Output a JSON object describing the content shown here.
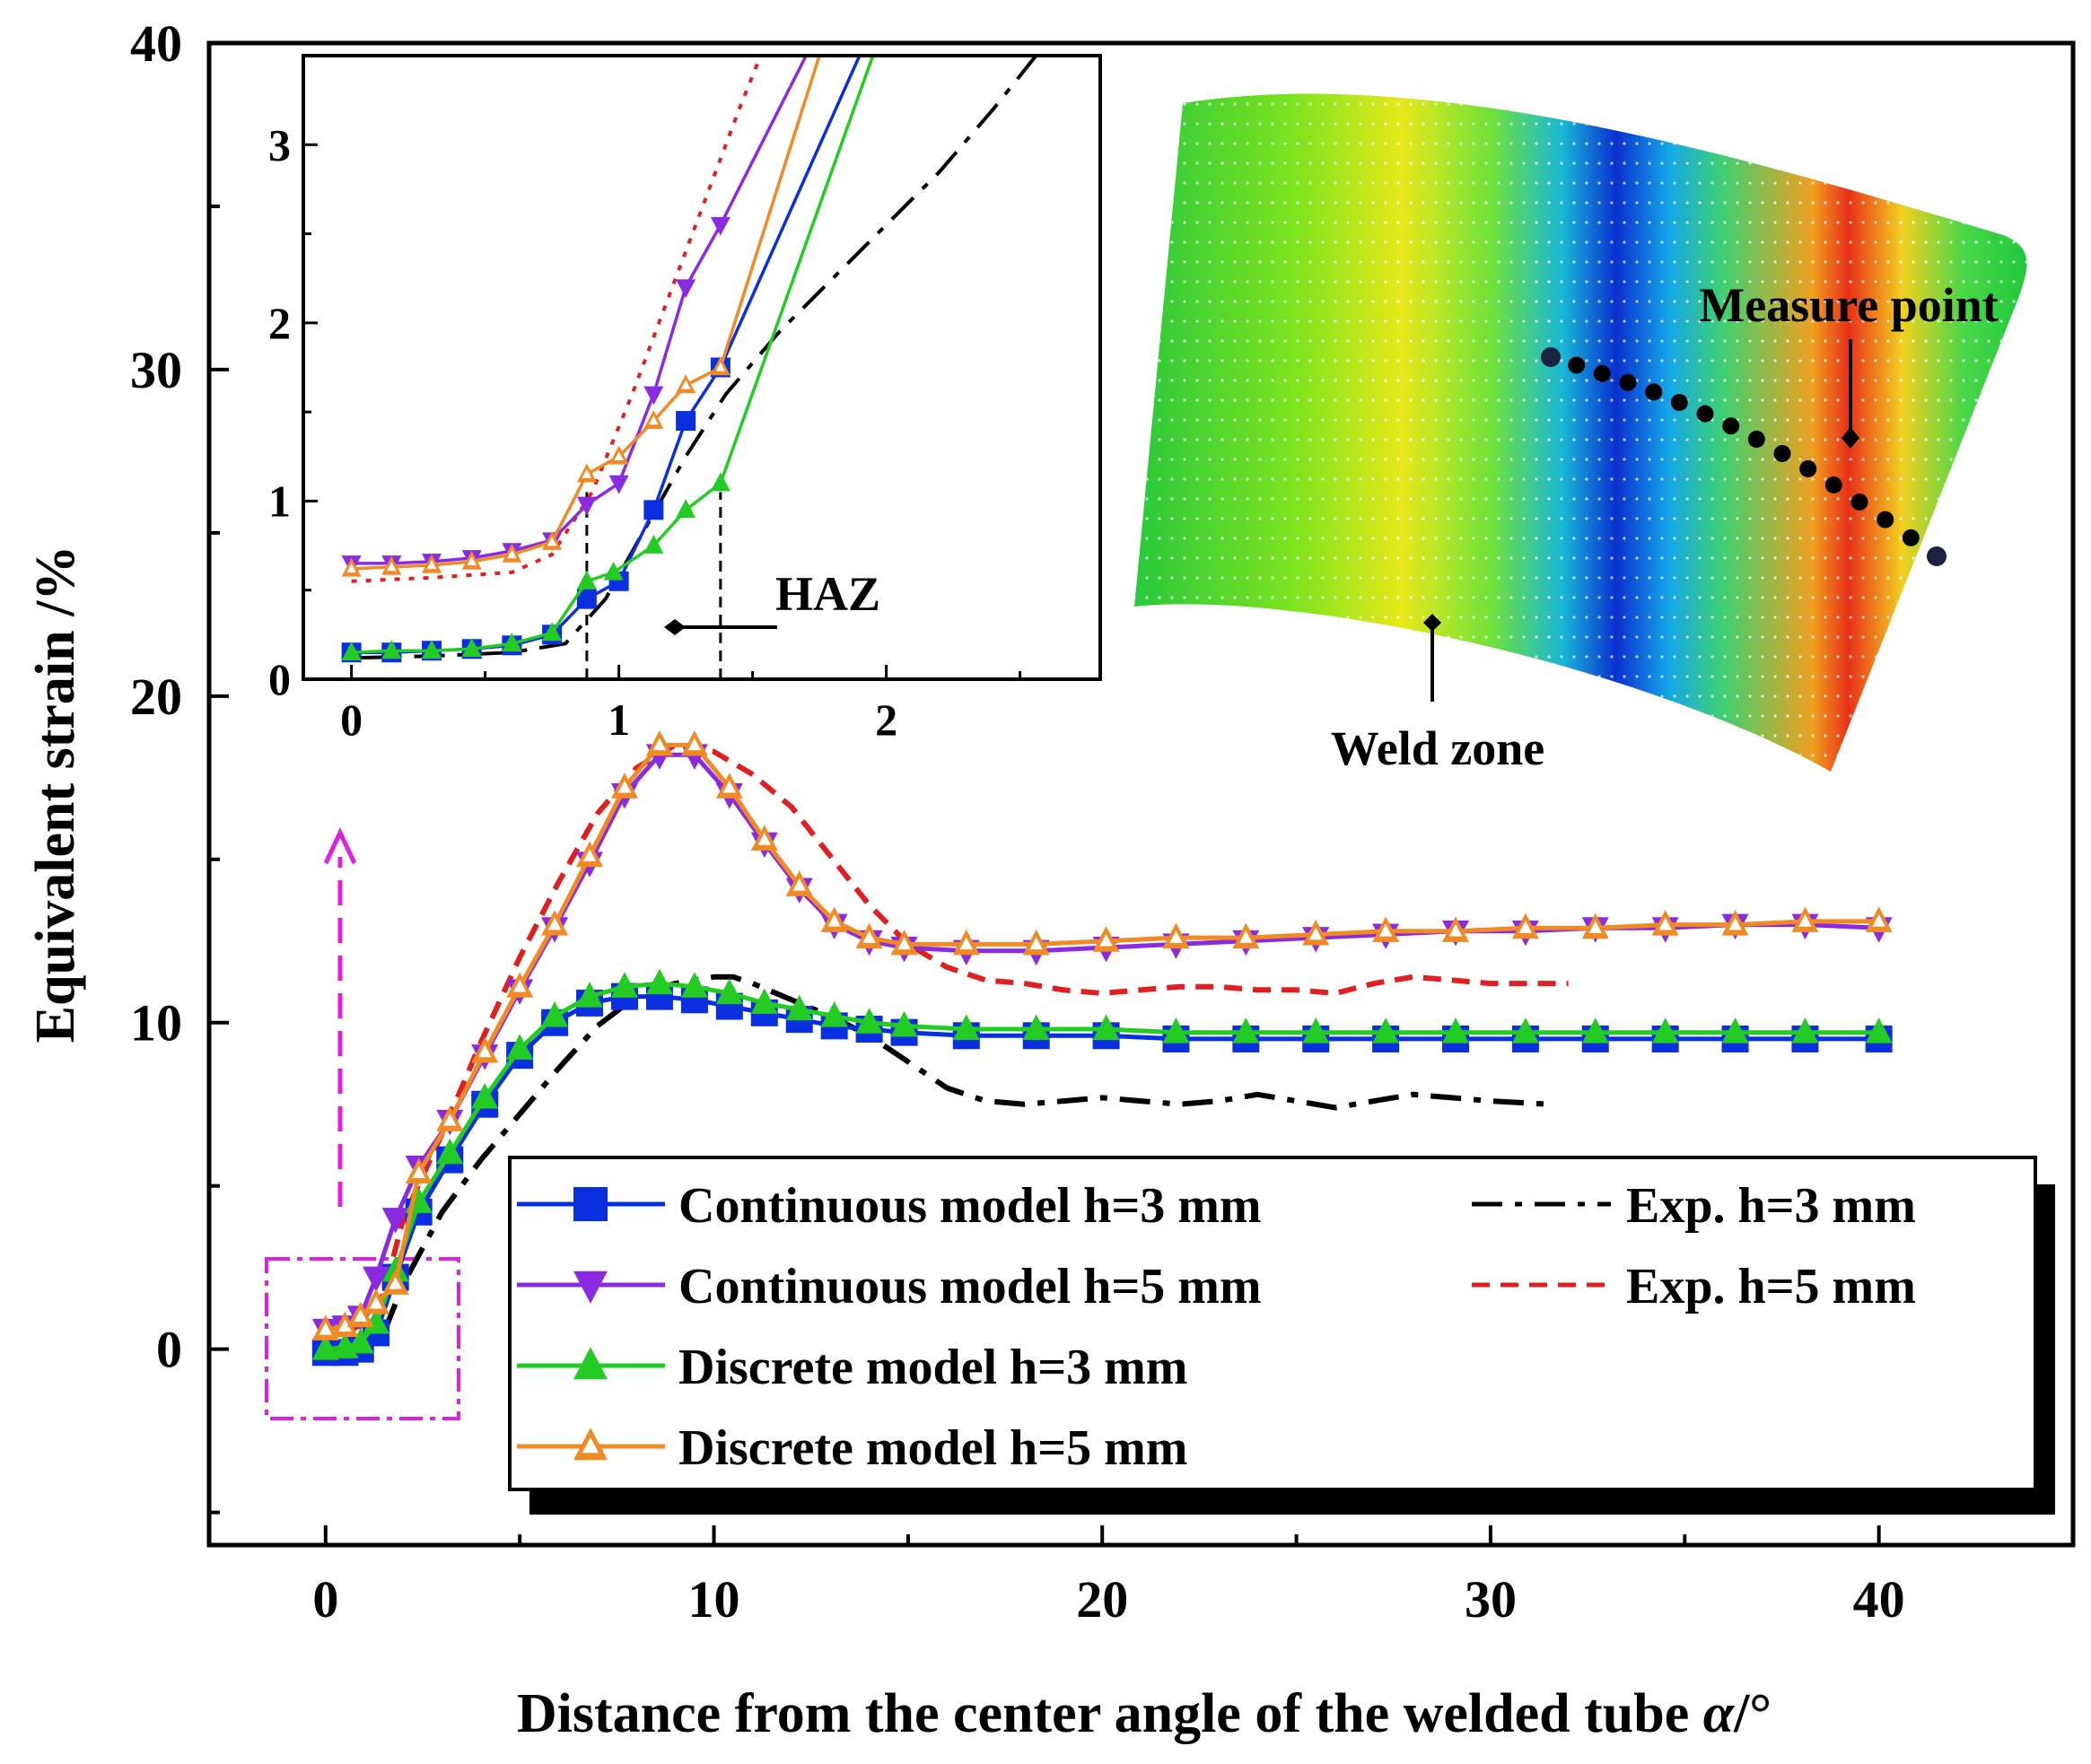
{
  "chart_data": {
    "type": "line",
    "xlabel": "Distance from the center angle of the welded tube α/°",
    "ylabel": "Equivalent strain /%",
    "xlim": [
      -3,
      45
    ],
    "ylim": [
      -6,
      40
    ],
    "xticks": [
      "0",
      "10",
      "20",
      "30",
      "40"
    ],
    "yticks": [
      "0",
      "10",
      "20",
      "30",
      "40"
    ],
    "legend_position": "bottom-right",
    "colors": {
      "cont3": "#0a2fe0",
      "cont5": "#8a2be2",
      "disc3": "#22cc22",
      "disc5": "#f08a24",
      "exp3": "#000000",
      "exp5": "#e02020",
      "guide": "#e020e0"
    },
    "series": [
      {
        "name": "Continuous model h=3 mm",
        "marker": "square",
        "x": [
          0,
          0.5,
          0.9,
          1.3,
          1.8,
          2.4,
          3.2,
          4.1,
          5.0,
          5.9,
          6.8,
          7.7,
          8.6,
          9.5,
          10.4,
          11.3,
          12.2,
          13.1,
          14.0,
          14.9,
          16.5,
          18.3,
          20.1,
          21.9,
          23.7,
          25.5,
          27.3,
          29.1,
          30.9,
          32.7,
          34.5,
          36.3,
          38.1,
          40.0
        ],
        "y": [
          -0.1,
          -0.1,
          0.0,
          0.5,
          2.2,
          4.2,
          5.8,
          7.5,
          9.0,
          10.0,
          10.6,
          10.8,
          10.8,
          10.7,
          10.5,
          10.3,
          10.1,
          9.9,
          9.8,
          9.7,
          9.6,
          9.6,
          9.6,
          9.5,
          9.5,
          9.5,
          9.5,
          9.5,
          9.5,
          9.5,
          9.5,
          9.5,
          9.5,
          9.5
        ]
      },
      {
        "name": "Continuous model h=5 mm",
        "marker": "triangle-down",
        "x": [
          0,
          0.5,
          0.9,
          1.3,
          1.8,
          2.4,
          3.2,
          4.1,
          5.0,
          5.9,
          6.8,
          7.7,
          8.6,
          9.5,
          10.4,
          11.3,
          12.2,
          13.1,
          14.0,
          14.9,
          16.5,
          18.3,
          20.1,
          21.9,
          23.7,
          25.5,
          27.3,
          29.1,
          30.9,
          32.7,
          34.5,
          36.3,
          38.1,
          40.0
        ],
        "y": [
          0.6,
          0.7,
          1.0,
          2.2,
          4.0,
          5.6,
          7.0,
          9.0,
          11.0,
          12.9,
          14.9,
          17.0,
          18.2,
          18.2,
          17.0,
          15.5,
          14.1,
          13.0,
          12.5,
          12.3,
          12.2,
          12.2,
          12.3,
          12.4,
          12.5,
          12.6,
          12.7,
          12.8,
          12.8,
          12.9,
          12.9,
          13.0,
          13.0,
          12.9
        ]
      },
      {
        "name": "Discrete model h=3 mm",
        "marker": "triangle-up",
        "x": [
          0,
          0.5,
          0.9,
          1.3,
          1.8,
          2.4,
          3.2,
          4.1,
          5.0,
          5.9,
          6.8,
          7.7,
          8.6,
          9.5,
          10.4,
          11.3,
          12.2,
          13.1,
          14.0,
          14.9,
          16.5,
          18.3,
          20.1,
          21.9,
          23.7,
          25.5,
          27.3,
          29.1,
          30.9,
          32.7,
          34.5,
          36.3,
          38.1,
          40.0
        ],
        "y": [
          0.0,
          0.05,
          0.2,
          0.8,
          2.4,
          4.5,
          6.0,
          7.7,
          9.2,
          10.2,
          10.8,
          11.1,
          11.2,
          11.1,
          10.9,
          10.6,
          10.4,
          10.2,
          10.0,
          9.9,
          9.8,
          9.8,
          9.8,
          9.7,
          9.7,
          9.7,
          9.7,
          9.7,
          9.7,
          9.7,
          9.7,
          9.7,
          9.7,
          9.7
        ]
      },
      {
        "name": "Discrete model h=5 mm",
        "marker": "triangle-up-open",
        "x": [
          0,
          0.5,
          0.9,
          1.3,
          1.8,
          2.4,
          3.2,
          4.1,
          5.0,
          5.9,
          6.8,
          7.7,
          8.6,
          9.5,
          10.4,
          11.3,
          12.2,
          13.1,
          14.0,
          14.9,
          16.5,
          18.3,
          20.1,
          21.9,
          23.7,
          25.5,
          27.3,
          29.1,
          30.9,
          32.7,
          34.5,
          36.3,
          38.1,
          40.0
        ],
        "y": [
          0.6,
          0.7,
          1.0,
          1.4,
          2.0,
          5.4,
          7.0,
          9.1,
          11.1,
          13.0,
          15.1,
          17.2,
          18.5,
          18.5,
          17.2,
          15.6,
          14.2,
          13.1,
          12.6,
          12.4,
          12.4,
          12.4,
          12.5,
          12.6,
          12.6,
          12.7,
          12.8,
          12.8,
          12.9,
          12.9,
          13.0,
          13.0,
          13.1,
          13.1
        ]
      },
      {
        "name": "Exp. h=3 mm",
        "style": "dash-dot",
        "x": [
          0,
          0.5,
          1.0,
          1.5,
          2.0,
          3.0,
          4.0,
          5.0,
          6.0,
          7.0,
          8.0,
          9.0,
          10.0,
          10.5,
          11.0,
          12.0,
          13.0,
          14.0,
          15.0,
          16.0,
          17.0,
          18.0,
          19.0,
          20.0,
          21.0,
          22.0,
          23.0,
          24.0,
          25.0,
          26.0,
          27.0,
          28.0,
          29.0,
          30.0,
          31.5
        ],
        "y": [
          0.0,
          0.05,
          0.1,
          0.5,
          2.0,
          4.2,
          5.8,
          7.2,
          8.6,
          9.9,
          10.8,
          11.2,
          11.4,
          11.4,
          11.2,
          10.7,
          10.2,
          9.6,
          8.8,
          8.0,
          7.6,
          7.5,
          7.6,
          7.7,
          7.6,
          7.5,
          7.6,
          7.8,
          7.6,
          7.4,
          7.6,
          7.8,
          7.7,
          7.6,
          7.5
        ]
      },
      {
        "name": "Exp. h=5 mm",
        "style": "dashed",
        "x": [
          0,
          0.5,
          1.0,
          1.5,
          2.0,
          3.0,
          4.0,
          5.0,
          6.0,
          7.0,
          8.0,
          9.0,
          10.0,
          11.0,
          12.0,
          13.0,
          14.0,
          15.0,
          16.0,
          17.0,
          18.0,
          19.0,
          20.0,
          21.0,
          22.0,
          23.0,
          24.0,
          25.0,
          26.0,
          27.0,
          28.0,
          29.0,
          30.0,
          31.0,
          32.0
        ],
        "y": [
          0.4,
          0.5,
          0.8,
          1.7,
          4.0,
          6.6,
          9.4,
          12.0,
          14.3,
          16.4,
          17.8,
          18.5,
          18.3,
          17.6,
          16.6,
          15.1,
          13.6,
          12.4,
          11.7,
          11.3,
          11.2,
          11.0,
          10.9,
          11.0,
          11.1,
          11.1,
          11.0,
          11.0,
          10.9,
          11.2,
          11.4,
          11.3,
          11.2,
          11.2,
          11.2
        ]
      }
    ],
    "inset": {
      "xlim": [
        -0.18,
        2.8
      ],
      "ylim": [
        0,
        3.5
      ],
      "xticks": [
        "0",
        "1",
        "2"
      ],
      "yticks": [
        "0",
        "1",
        "2",
        "3"
      ],
      "haz_bounds": [
        0.88,
        1.38
      ],
      "annotation": "HAZ",
      "series": [
        {
          "name": "Continuous model h=3 mm",
          "x": [
            0,
            0.15,
            0.3,
            0.45,
            0.6,
            0.75,
            0.88,
            1.0,
            1.13,
            1.25,
            1.38,
            1.9
          ],
          "y": [
            0.15,
            0.15,
            0.16,
            0.17,
            0.19,
            0.25,
            0.45,
            0.55,
            0.95,
            1.45,
            1.75,
            3.5
          ]
        },
        {
          "name": "Continuous model h=5 mm",
          "x": [
            0,
            0.15,
            0.3,
            0.45,
            0.6,
            0.75,
            0.88,
            1.0,
            1.13,
            1.25,
            1.38,
            1.7
          ],
          "y": [
            0.65,
            0.65,
            0.66,
            0.68,
            0.72,
            0.78,
            0.98,
            1.1,
            1.6,
            2.2,
            2.55,
            3.5
          ]
        },
        {
          "name": "Discrete model h=3 mm",
          "x": [
            0,
            0.15,
            0.3,
            0.45,
            0.6,
            0.75,
            0.88,
            0.98,
            1.13,
            1.25,
            1.38,
            1.95
          ],
          "y": [
            0.15,
            0.16,
            0.16,
            0.17,
            0.2,
            0.26,
            0.55,
            0.6,
            0.75,
            0.95,
            1.1,
            3.5
          ]
        },
        {
          "name": "Discrete model h=5 mm",
          "x": [
            0,
            0.15,
            0.3,
            0.45,
            0.6,
            0.75,
            0.88,
            1.0,
            1.13,
            1.25,
            1.38,
            1.75
          ],
          "y": [
            0.62,
            0.63,
            0.64,
            0.66,
            0.7,
            0.77,
            1.15,
            1.25,
            1.45,
            1.65,
            1.75,
            3.5
          ]
        },
        {
          "name": "Exp. h=3 mm",
          "x": [
            0,
            0.3,
            0.6,
            0.8,
            0.95,
            1.1,
            1.25,
            1.4,
            1.6,
            1.8,
            2.0,
            2.2,
            2.4,
            2.56
          ],
          "y": [
            0.12,
            0.13,
            0.15,
            0.2,
            0.45,
            0.85,
            1.25,
            1.6,
            1.95,
            2.25,
            2.55,
            2.85,
            3.2,
            3.5
          ]
        },
        {
          "name": "Exp. h=5 mm",
          "x": [
            0,
            0.3,
            0.6,
            0.75,
            0.9,
            1.05,
            1.2,
            1.35,
            1.45,
            1.53
          ],
          "y": [
            0.55,
            0.57,
            0.6,
            0.7,
            1.05,
            1.6,
            2.2,
            2.8,
            3.2,
            3.5
          ]
        }
      ]
    },
    "contour_labels": {
      "measure_point": "Measure point",
      "weld_zone": "Weld zone"
    }
  }
}
